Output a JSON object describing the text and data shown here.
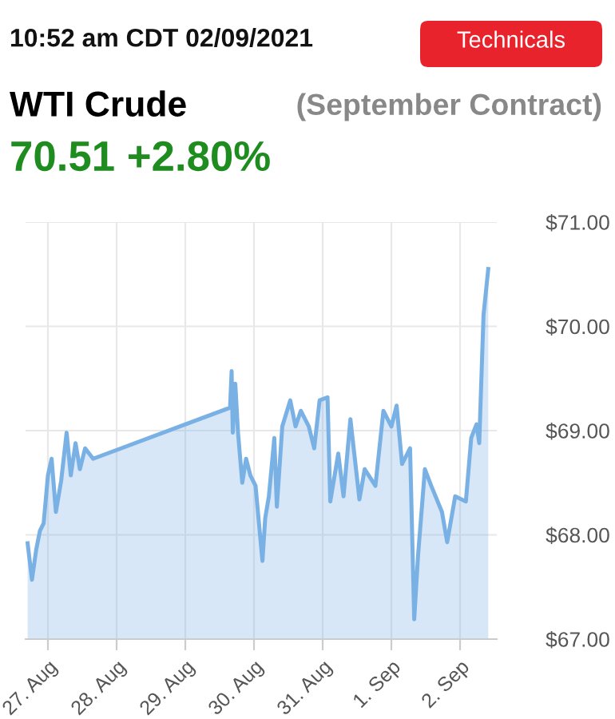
{
  "chart_data": {
    "type": "area",
    "title": "WTI Crude",
    "subtitle": "(September Contract)",
    "annotations": [
      "10:52 am CDT 02/09/2021",
      "70.51 +2.80%",
      "Technicals"
    ],
    "x": [
      "2021-08-26T16:54",
      "2021-08-26T18:25",
      "2021-08-26T19:55",
      "2021-08-26T21:13",
      "2021-08-26T22:30",
      "2021-08-27T00:00",
      "2021-08-27T01:17",
      "2021-08-27T02:47",
      "2021-08-27T04:38",
      "2021-08-27T06:32",
      "2021-08-27T07:59",
      "2021-08-27T09:39",
      "2021-08-27T11:10",
      "2021-08-27T13:00",
      "2021-08-27T15:48",
      "2021-08-29T15:38",
      "2021-08-29T16:11",
      "2021-08-29T16:35",
      "2021-08-29T17:28",
      "2021-08-29T18:25",
      "2021-08-29T19:54",
      "2021-08-29T21:14",
      "2021-08-29T22:44",
      "2021-08-30T00:33",
      "2021-08-30T02:24",
      "2021-08-30T02:57",
      "2021-08-30T03:55",
      "2021-08-30T05:12",
      "2021-08-30T07:06",
      "2021-08-30T07:59",
      "2021-08-30T09:53",
      "2021-08-30T12:40",
      "2021-08-30T14:31",
      "2021-08-30T16:21",
      "2021-08-30T19:09",
      "2021-08-30T21:02",
      "2021-08-30T22:55",
      "2021-08-31T01:42",
      "2021-08-31T02:39",
      "2021-08-31T05:27",
      "2021-08-31T07:17",
      "2021-08-31T09:41",
      "2021-08-31T12:50",
      "2021-08-31T14:41",
      "2021-08-31T18:25",
      "2021-08-31T21:13",
      "2021-09-01T00:00",
      "2021-09-01T01:50",
      "2021-09-01T03:44",
      "2021-09-01T06:32",
      "2021-09-01T07:59",
      "2021-09-01T09:19",
      "2021-09-01T11:43",
      "2021-09-01T13:56",
      "2021-09-01T17:40",
      "2021-09-01T19:30",
      "2021-09-01T22:18",
      "2021-09-02T02:02",
      "2021-09-02T03:54",
      "2021-09-02T05:45",
      "2021-09-02T06:42",
      "2021-09-02T08:12",
      "2021-09-02T09:51"
    ],
    "series": [
      {
        "color": "#7ab1e5",
        "values": [
          67.92,
          67.57,
          67.86,
          68.04,
          68.11,
          68.57,
          68.73,
          68.22,
          68.52,
          68.98,
          68.57,
          68.88,
          68.63,
          68.83,
          68.73,
          69.22,
          69.57,
          68.98,
          69.45,
          68.98,
          68.5,
          68.73,
          68.57,
          68.47,
          67.91,
          67.75,
          68.16,
          68.37,
          68.93,
          68.27,
          69.04,
          69.29,
          69.04,
          69.19,
          69.04,
          68.83,
          69.29,
          69.32,
          68.32,
          68.78,
          68.37,
          69.11,
          68.34,
          68.63,
          68.47,
          69.19,
          69.04,
          69.24,
          68.68,
          68.83,
          67.19,
          67.8,
          68.63,
          68.47,
          68.22,
          67.93,
          68.37,
          68.32,
          68.93,
          69.06,
          68.88,
          70.11,
          70.55
        ]
      }
    ],
    "xlim": [
      "2021-08-26T16:11",
      "2021-09-02T12:50"
    ],
    "xticks": [
      {
        "value": "2021-08-27",
        "label": "27. Aug"
      },
      {
        "value": "2021-08-28",
        "label": "28. Aug"
      },
      {
        "value": "2021-08-29",
        "label": "29. Aug"
      },
      {
        "value": "2021-08-30",
        "label": "30. Aug"
      },
      {
        "value": "2021-08-31",
        "label": "31. Aug"
      },
      {
        "value": "2021-09-01",
        "label": "1. Sep"
      },
      {
        "value": "2021-09-02",
        "label": "2. Sep"
      }
    ],
    "ylim": [
      67,
      71
    ],
    "yticks": [
      {
        "value": 67,
        "label": "$67.00"
      },
      {
        "value": 68,
        "label": "$68.00"
      },
      {
        "value": 69,
        "label": "$69.00"
      },
      {
        "value": 70,
        "label": "$70.00"
      },
      {
        "value": 71,
        "label": "$71.00"
      }
    ],
    "grid": true
  }
}
